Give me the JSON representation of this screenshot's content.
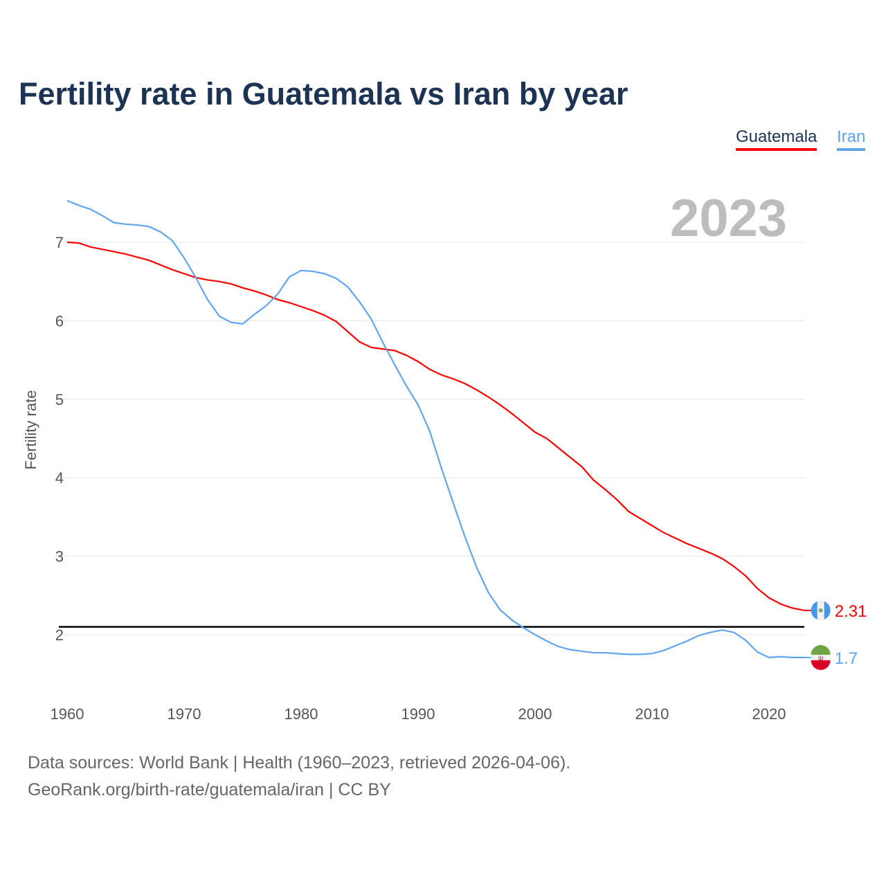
{
  "title": "Fertility rate in Guatemala vs Iran by year",
  "current_year": "2023",
  "footer": {
    "line1": "Data sources: World Bank | Health (1960–2023, retrieved 2026-04-06).",
    "line2": "GeoRank.org/birth-rate/guatemala/iran | CC BY"
  },
  "chart_data": {
    "type": "line",
    "title": "Fertility rate in Guatemala vs Iran by year",
    "xlabel": "",
    "ylabel": "Fertility rate",
    "xlim": [
      1960,
      2023
    ],
    "ylim": [
      1.3,
      7.6
    ],
    "xticks": [
      1960,
      1970,
      1980,
      1990,
      2000,
      2010,
      2020
    ],
    "yticks": [
      2,
      3,
      4,
      5,
      6,
      7
    ],
    "grid": true,
    "legend_position": "top-right",
    "reference_line": 2.1,
    "x": [
      1960,
      1961,
      1962,
      1963,
      1964,
      1965,
      1966,
      1967,
      1968,
      1969,
      1970,
      1971,
      1972,
      1973,
      1974,
      1975,
      1976,
      1977,
      1978,
      1979,
      1980,
      1981,
      1982,
      1983,
      1984,
      1985,
      1986,
      1987,
      1988,
      1989,
      1990,
      1991,
      1992,
      1993,
      1994,
      1995,
      1996,
      1997,
      1998,
      1999,
      2000,
      2001,
      2002,
      2003,
      2004,
      2005,
      2006,
      2007,
      2008,
      2009,
      2010,
      2011,
      2012,
      2013,
      2014,
      2015,
      2016,
      2017,
      2018,
      2019,
      2020,
      2021,
      2022,
      2023
    ],
    "series": [
      {
        "name": "Guatemala",
        "color": "#ff0000",
        "end_label": "2.31",
        "values": [
          7.0,
          6.99,
          6.94,
          6.91,
          6.88,
          6.85,
          6.81,
          6.77,
          6.71,
          6.65,
          6.6,
          6.55,
          6.52,
          6.5,
          6.47,
          6.42,
          6.38,
          6.33,
          6.27,
          6.23,
          6.18,
          6.13,
          6.07,
          5.99,
          5.86,
          5.73,
          5.66,
          5.64,
          5.62,
          5.56,
          5.48,
          5.38,
          5.31,
          5.26,
          5.2,
          5.12,
          5.03,
          4.93,
          4.82,
          4.7,
          4.58,
          4.5,
          4.38,
          4.26,
          4.14,
          3.97,
          3.85,
          3.72,
          3.57,
          3.48,
          3.39,
          3.3,
          3.23,
          3.16,
          3.1,
          3.04,
          2.97,
          2.87,
          2.75,
          2.59,
          2.47,
          2.39,
          2.34,
          2.31
        ]
      },
      {
        "name": "Iran",
        "color": "#60a5ef",
        "end_label": "1.7",
        "values": [
          7.53,
          7.47,
          7.42,
          7.34,
          7.25,
          7.23,
          7.22,
          7.2,
          7.13,
          7.02,
          6.8,
          6.55,
          6.27,
          6.06,
          5.98,
          5.96,
          6.08,
          6.19,
          6.34,
          6.56,
          6.64,
          6.63,
          6.6,
          6.54,
          6.43,
          6.24,
          6.02,
          5.72,
          5.44,
          5.17,
          4.93,
          4.59,
          4.12,
          3.68,
          3.25,
          2.86,
          2.54,
          2.32,
          2.19,
          2.09,
          2.0,
          1.92,
          1.85,
          1.81,
          1.79,
          1.77,
          1.77,
          1.76,
          1.75,
          1.75,
          1.76,
          1.8,
          1.86,
          1.92,
          1.99,
          2.03,
          2.06,
          2.03,
          1.93,
          1.78,
          1.71,
          1.72,
          1.71,
          1.71
        ]
      }
    ]
  }
}
